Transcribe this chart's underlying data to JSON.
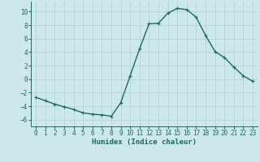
{
  "xlabel": "Humidex (Indice chaleur)",
  "ylabel": "",
  "background_color": "#cce8e8",
  "grid_color": "#b8d4d4",
  "line_color": "#1a6b5a",
  "marker_color": "#1a6b5a",
  "x_values": [
    0,
    1,
    2,
    3,
    4,
    5,
    6,
    7,
    8,
    9,
    10,
    11,
    12,
    13,
    14,
    15,
    16,
    17,
    18,
    19,
    20,
    21,
    22,
    23
  ],
  "y_values": [
    -2.7,
    -3.2,
    -3.7,
    -4.1,
    -4.5,
    -5.0,
    -5.2,
    -5.3,
    -5.5,
    -3.5,
    0.5,
    4.5,
    8.2,
    8.3,
    9.8,
    10.5,
    10.3,
    9.2,
    6.5,
    4.1,
    3.2,
    1.8,
    0.5,
    -0.3
  ],
  "ylim": [
    -7,
    11.5
  ],
  "xlim": [
    -0.5,
    23.5
  ],
  "yticks": [
    -6,
    -4,
    -2,
    0,
    2,
    4,
    6,
    8,
    10
  ],
  "xticks": [
    0,
    1,
    2,
    3,
    4,
    5,
    6,
    7,
    8,
    9,
    10,
    11,
    12,
    13,
    14,
    15,
    16,
    17,
    18,
    19,
    20,
    21,
    22,
    23
  ],
  "tick_fontsize": 5.5,
  "xlabel_fontsize": 6.5,
  "line_width": 1.0,
  "marker_size": 2.0
}
